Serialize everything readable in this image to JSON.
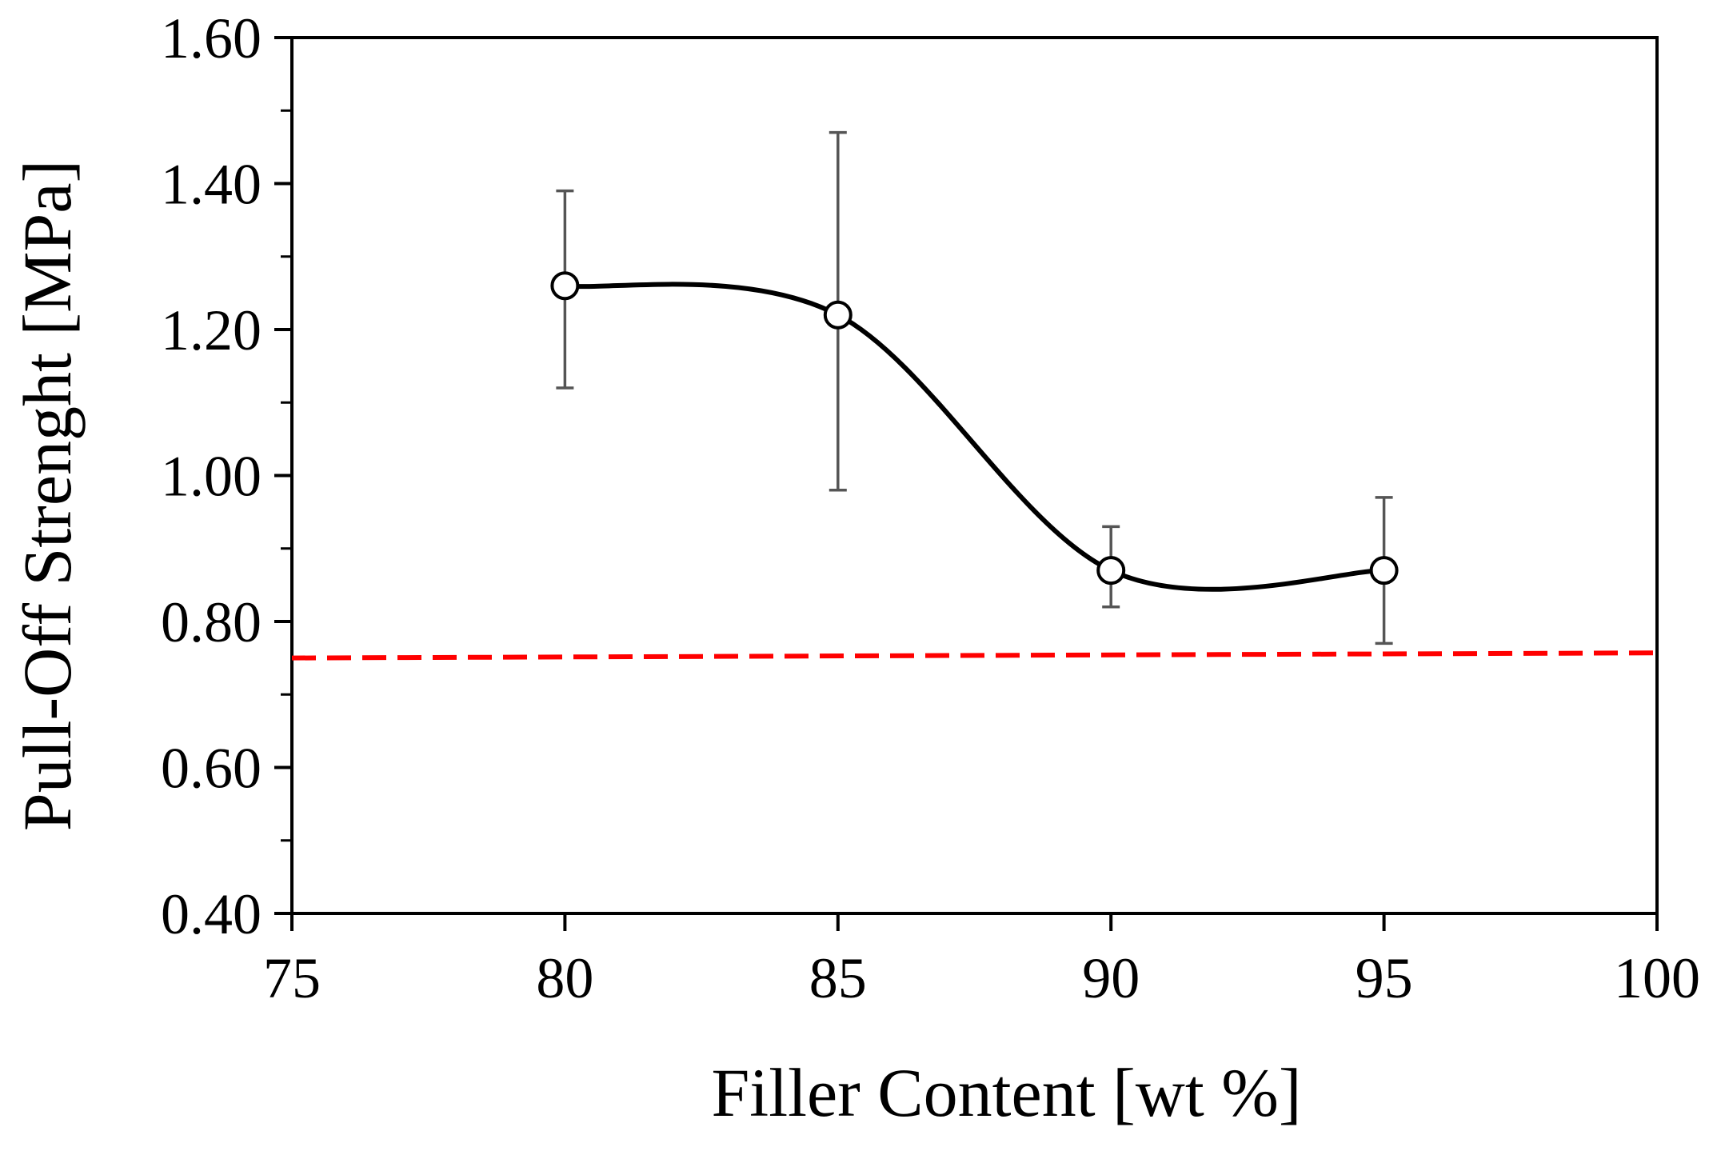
{
  "chart_data": {
    "type": "scatter",
    "xlabel": "Filler Content [wt %]",
    "ylabel": "Pull-Off Strenght [MPa]",
    "xlim": [
      75,
      100
    ],
    "ylim": [
      0.4,
      1.6
    ],
    "x_ticks": [
      "75",
      "80",
      "85",
      "90",
      "95",
      "100"
    ],
    "y_ticks": [
      "0.40",
      "0.60",
      "0.80",
      "1.00",
      "1.20",
      "1.40",
      "1.60"
    ],
    "grid": false,
    "series": [
      {
        "x": [
          80,
          85,
          90,
          95
        ],
        "y": [
          1.26,
          1.22,
          0.87,
          0.87
        ],
        "error_low": [
          1.12,
          0.98,
          0.82,
          0.77
        ],
        "error_high": [
          1.39,
          1.47,
          0.93,
          0.97
        ],
        "marker": "open-circle",
        "line": "smooth",
        "color": "#000000"
      }
    ],
    "reference_line": {
      "x": [
        75,
        100
      ],
      "y": [
        0.75,
        0.757
      ],
      "style": "dashed",
      "color": "#ff0000"
    }
  }
}
